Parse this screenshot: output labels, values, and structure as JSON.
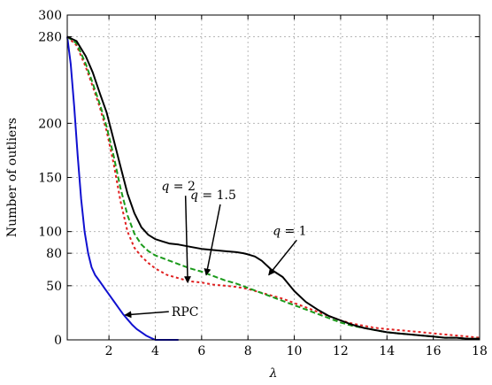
{
  "chart_data": {
    "type": "line",
    "title": "",
    "xlabel": "λ",
    "ylabel": "Number of outliers",
    "xlim": [
      0.2,
      18
    ],
    "ylim": [
      0,
      300
    ],
    "xticks": [
      2,
      4,
      6,
      8,
      10,
      12,
      14,
      16,
      18
    ],
    "yticks": [
      0,
      50,
      80,
      100,
      150,
      200,
      280,
      300
    ],
    "grid": true,
    "series": [
      {
        "name": "q = 1",
        "color": "#000000",
        "style": "solid",
        "x": [
          0.2,
          0.6,
          1.0,
          1.3,
          1.6,
          1.9,
          2.2,
          2.5,
          2.8,
          3.1,
          3.4,
          3.7,
          4.0,
          4.3,
          4.6,
          5.0,
          5.5,
          6.0,
          6.5,
          7.0,
          7.5,
          7.8,
          8.0,
          8.3,
          8.6,
          9.0,
          9.5,
          10.0,
          10.5,
          11.0,
          11.5,
          12.0,
          12.5,
          13.0,
          13.5,
          14.0,
          14.5,
          15.0,
          15.5,
          16.0,
          16.5,
          17.0,
          17.5,
          18.0
        ],
        "y": [
          280,
          276,
          262,
          247,
          228,
          210,
          185,
          160,
          135,
          117,
          104,
          97,
          93,
          91,
          89,
          88,
          86,
          84,
          83,
          82,
          81,
          80,
          79,
          77,
          73,
          65,
          58,
          45,
          35,
          28,
          22,
          18,
          14,
          11,
          9,
          7,
          6,
          5,
          4,
          3,
          2,
          2,
          1,
          1
        ]
      },
      {
        "name": "q = 1.5",
        "color": "#1a9a1a",
        "style": "dashed",
        "x": [
          0.2,
          0.6,
          1.0,
          1.3,
          1.6,
          1.9,
          2.2,
          2.5,
          2.8,
          3.1,
          3.4,
          3.7,
          4.0,
          4.5,
          5.0,
          5.5,
          6.0,
          6.5,
          7.0,
          7.5,
          8.0,
          8.5,
          9.0,
          9.5,
          10.0,
          10.5,
          11.0,
          11.5,
          12.0,
          12.5,
          13.0,
          13.5,
          14.0,
          14.5,
          15.0,
          15.5,
          16.0,
          16.5,
          17.0,
          17.5,
          18.0
        ],
        "y": [
          280,
          274,
          255,
          237,
          218,
          197,
          170,
          140,
          115,
          98,
          88,
          82,
          78,
          74,
          70,
          66,
          63,
          59,
          55,
          52,
          48,
          44,
          40,
          36,
          32,
          28,
          24,
          20,
          16,
          13,
          11,
          9,
          7,
          6,
          5,
          4,
          3,
          2,
          2,
          1,
          1
        ]
      },
      {
        "name": "q = 2",
        "color": "#e02020",
        "style": "dotted",
        "x": [
          0.2,
          0.6,
          1.0,
          1.3,
          1.6,
          1.9,
          2.2,
          2.5,
          2.8,
          3.1,
          3.4,
          3.7,
          4.0,
          4.5,
          5.0,
          5.5,
          6.0,
          6.5,
          7.0,
          7.5,
          8.0,
          8.5,
          9.0,
          9.5,
          10.0,
          10.5,
          11.0,
          11.5,
          12.0,
          12.5,
          13.0,
          13.5,
          14.0,
          14.5,
          15.0,
          15.5,
          16.0,
          16.5,
          17.0,
          17.5,
          18.0
        ],
        "y": [
          280,
          272,
          252,
          234,
          215,
          193,
          163,
          128,
          100,
          85,
          77,
          71,
          66,
          60,
          57,
          54,
          53,
          51,
          50,
          49,
          47,
          44,
          41,
          38,
          34,
          30,
          26,
          22,
          18,
          15,
          13,
          11,
          10,
          9,
          8,
          7,
          6,
          5,
          4,
          3,
          2
        ]
      },
      {
        "name": "RPC",
        "color": "#1010d0",
        "style": "solid",
        "x": [
          0.2,
          0.35,
          0.5,
          0.65,
          0.8,
          0.95,
          1.1,
          1.25,
          1.4,
          1.6,
          1.8,
          2.0,
          2.2,
          2.4,
          2.6,
          2.8,
          3.0,
          3.2,
          3.4,
          3.6,
          3.8,
          4.0,
          4.5,
          5.0
        ],
        "y": [
          280,
          255,
          215,
          170,
          130,
          100,
          80,
          67,
          60,
          54,
          48,
          42,
          36,
          30,
          24,
          19,
          14,
          10,
          7,
          4,
          2,
          0,
          0,
          0
        ]
      }
    ],
    "annotations": [
      {
        "text_pre": "q",
        "text_post": " = 1",
        "x_text": 9.8,
        "y_text": 97,
        "x_arrow": 8.9,
        "y_arrow": 60
      },
      {
        "text_pre": "q",
        "text_post": " = 1.5",
        "x_text": 6.5,
        "y_text": 130,
        "x_arrow": 6.2,
        "y_arrow": 60
      },
      {
        "text_pre": "q",
        "text_post": " = 2",
        "x_text": 5.0,
        "y_text": 138,
        "x_arrow": 5.4,
        "y_arrow": 53
      },
      {
        "text_pre": "",
        "text_post": "RPC",
        "x_text": 4.7,
        "y_text": 22,
        "x_arrow": 2.7,
        "y_arrow": 23
      }
    ]
  }
}
